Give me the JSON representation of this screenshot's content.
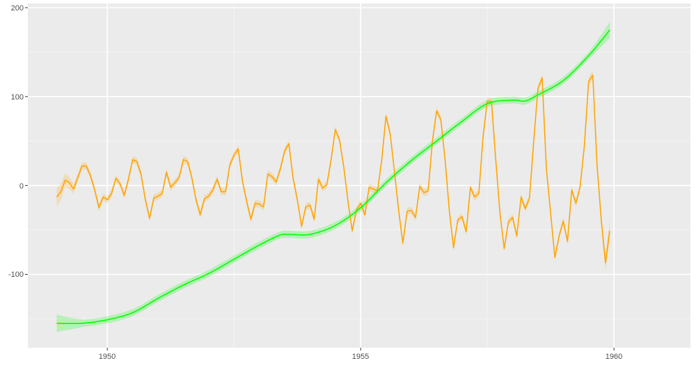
{
  "chart_data": {
    "type": "line",
    "title": "",
    "xlabel": "",
    "ylabel": "",
    "xlim": [
      1948.43,
      1961.51
    ],
    "ylim": [
      -182.5,
      204.7
    ],
    "grid": true,
    "legend": "none",
    "x_ticks": [
      1950,
      1955,
      1960
    ],
    "y_ticks": [
      -100,
      0,
      100,
      200
    ],
    "x_tick_labels": [
      "1950",
      "1955",
      "1960"
    ],
    "y_tick_labels": [
      "-100",
      "0",
      "100",
      "200"
    ],
    "series": [
      {
        "color": "#FFA500",
        "band_color": "#FFA500",
        "x_start": 1949.0,
        "x_step": 0.083333,
        "values": [
          -13,
          -7,
          6,
          3,
          -4,
          9,
          22,
          22,
          11,
          -5,
          -25,
          -13,
          -16,
          -9,
          8,
          2,
          -11,
          7,
          29,
          27,
          12,
          -16,
          -37,
          -14,
          -12,
          -9,
          15,
          -2,
          3,
          9,
          29,
          27,
          9,
          -16,
          -33,
          -15,
          -12,
          -5,
          7,
          -7,
          -7,
          23,
          34,
          41,
          5,
          -18,
          -38,
          -20,
          -21,
          -24,
          13,
          10,
          4,
          19,
          39,
          47,
          8,
          -16,
          -46,
          -24,
          -22,
          -38,
          7,
          -3,
          1,
          29,
          63,
          51,
          21,
          -18,
          -51,
          -28,
          -20,
          -33,
          -2,
          -4,
          -6,
          29,
          78,
          58,
          16,
          -28,
          -65,
          -29,
          -28,
          -36,
          -1,
          -8,
          -6,
          50,
          84,
          74,
          29,
          -28,
          -70,
          -39,
          -35,
          -52,
          -2,
          -13,
          -9,
          55,
          95,
          94,
          29,
          -31,
          -71,
          -41,
          -36,
          -57,
          -13,
          -26,
          -14,
          50,
          109,
          121,
          19,
          -31,
          -81,
          -57,
          -40,
          -63,
          -5,
          -20,
          -1,
          45,
          117,
          124,
          23,
          -39,
          -87,
          -51
        ]
      },
      {
        "color": "#00FF00",
        "band_color": "#00FF00",
        "points": [
          [
            1949.0,
            -155
          ],
          [
            1949.5,
            -155
          ],
          [
            1950.0,
            -151
          ],
          [
            1950.5,
            -143
          ],
          [
            1951.0,
            -127
          ],
          [
            1951.5,
            -112
          ],
          [
            1952.0,
            -99
          ],
          [
            1952.5,
            -83
          ],
          [
            1953.0,
            -67
          ],
          [
            1953.4,
            -56
          ],
          [
            1953.6,
            -55
          ],
          [
            1954.0,
            -55
          ],
          [
            1954.5,
            -45
          ],
          [
            1955.0,
            -25
          ],
          [
            1955.5,
            3
          ],
          [
            1956.0,
            28
          ],
          [
            1956.5,
            50
          ],
          [
            1957.0,
            72
          ],
          [
            1957.5,
            92
          ],
          [
            1958.0,
            96
          ],
          [
            1958.25,
            95
          ],
          [
            1958.5,
            102
          ],
          [
            1959.0,
            118
          ],
          [
            1959.5,
            146
          ],
          [
            1959.92,
            175
          ]
        ]
      }
    ]
  }
}
